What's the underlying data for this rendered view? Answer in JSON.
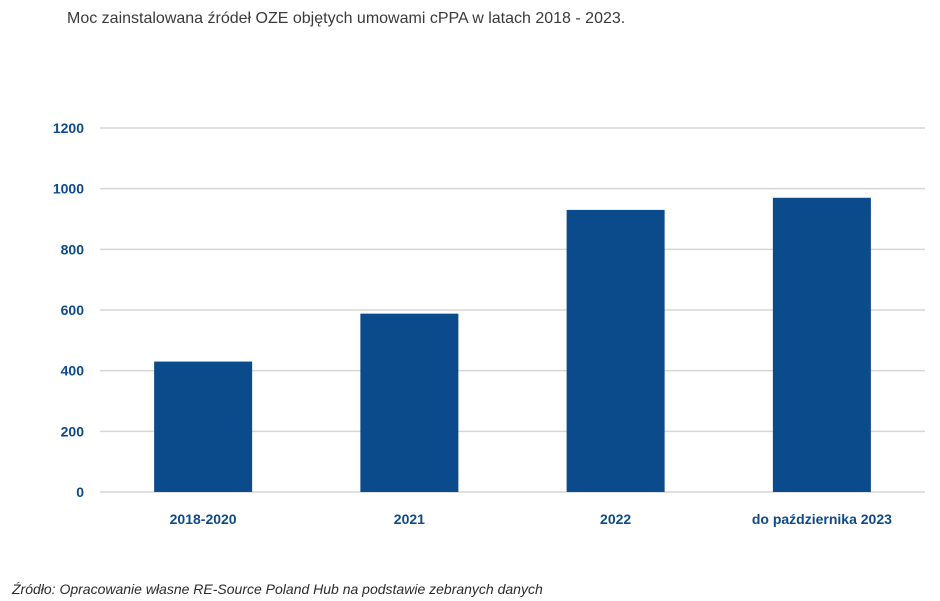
{
  "title": "Moc zainstalowana źródeł OZE objętych umowami cPPA w latach 2018 - 2023.",
  "source": "Źródło: Opracowanie własne RE-Source Poland Hub na podstawie zebranych danych",
  "colors": {
    "bar": "#0b4a8b",
    "grid": "#d6d6d6",
    "axis_text": "#0b4a8b"
  },
  "chart_data": {
    "type": "bar",
    "title": "Moc zainstalowana źródeł OZE objętych umowami cPPA w latach 2018 - 2023.",
    "categories": [
      "2018-2020",
      "2021",
      "2022",
      "do października 2023"
    ],
    "values": [
      430,
      588,
      930,
      970
    ],
    "xlabel": "",
    "ylabel": "",
    "ylim": [
      0,
      1200
    ],
    "yticks": [
      0,
      200,
      400,
      600,
      800,
      1000,
      1200
    ],
    "grid": true,
    "legend": "none"
  }
}
